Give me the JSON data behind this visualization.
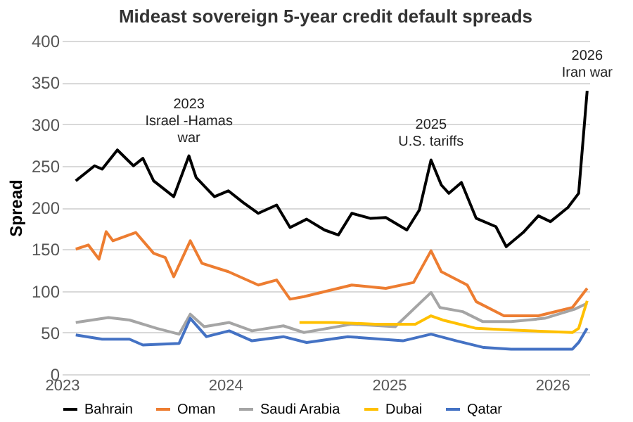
{
  "chart_data": {
    "type": "line",
    "title": "Mideast sovereign 5-year credit default spreads",
    "ylabel": "Spread",
    "xlim": [
      "2023-01-01",
      "2026-03-25"
    ],
    "xticks": [
      {
        "value": "2023-01-01",
        "label": "2023"
      },
      {
        "value": "2024-01-01",
        "label": "2024"
      },
      {
        "value": "2025-01-01",
        "label": "2025"
      },
      {
        "value": "2026-01-01",
        "label": "2026"
      }
    ],
    "ylim": [
      0,
      400
    ],
    "yticks": [
      0,
      50,
      100,
      150,
      200,
      250,
      300,
      350,
      400
    ],
    "grid": "y",
    "legend": "bottom",
    "marker": "none",
    "line_style": "solid",
    "annotations": [
      {
        "text": "2023\nIsrael -Hamas\nwar",
        "x": "2023-10-12",
        "y": 262
      },
      {
        "text": "2025\nU.S. tariffs",
        "x": "2025-04-05",
        "y": 257
      },
      {
        "text": "2026\nIran war",
        "x": "2026-03-20",
        "y": 340
      }
    ],
    "series": [
      {
        "name": "Bahrain",
        "color": "#000000",
        "x": [
          "2023-02-01",
          "2023-03-15",
          "2023-04-01",
          "2023-05-05",
          "2023-06-10",
          "2023-07-01",
          "2023-07-25",
          "2023-09-08",
          "2023-10-12",
          "2023-10-28",
          "2023-12-08",
          "2024-01-08",
          "2024-02-10",
          "2024-03-15",
          "2024-04-25",
          "2024-05-25",
          "2024-07-01",
          "2024-08-10",
          "2024-09-10",
          "2024-10-10",
          "2024-11-20",
          "2024-12-25",
          "2025-02-10",
          "2025-03-10",
          "2025-04-05",
          "2025-04-28",
          "2025-05-15",
          "2025-06-12",
          "2025-07-15",
          "2025-08-28",
          "2025-09-20",
          "2025-10-28",
          "2025-12-01",
          "2025-12-28",
          "2026-02-05",
          "2026-03-01",
          "2026-03-20"
        ],
        "values": [
          232,
          250,
          246,
          269,
          250,
          259,
          232,
          213,
          262,
          236,
          213,
          220,
          206,
          193,
          203,
          176,
          186,
          173,
          167,
          193,
          187,
          188,
          173,
          197,
          257,
          227,
          217,
          230,
          187,
          177,
          153,
          170,
          190,
          183,
          200,
          217,
          340
        ]
      },
      {
        "name": "Oman",
        "color": "#ed7d31",
        "x": [
          "2023-02-01",
          "2023-03-01",
          "2023-03-25",
          "2023-04-10",
          "2023-04-25",
          "2023-06-15",
          "2023-07-25",
          "2023-08-20",
          "2023-09-08",
          "2023-10-15",
          "2023-11-10",
          "2024-01-08",
          "2024-03-15",
          "2024-04-25",
          "2024-05-25",
          "2024-06-25",
          "2024-10-10",
          "2024-12-25",
          "2025-02-25",
          "2025-04-05",
          "2025-04-28",
          "2025-06-25",
          "2025-07-15",
          "2025-09-15",
          "2025-12-01",
          "2026-02-15",
          "2026-03-20"
        ],
        "values": [
          150,
          155,
          138,
          171,
          160,
          170,
          145,
          140,
          117,
          160,
          133,
          123,
          107,
          113,
          90,
          93,
          107,
          103,
          110,
          148,
          123,
          107,
          87,
          70,
          70,
          80,
          103
        ]
      },
      {
        "name": "Saudi Arabia",
        "color": "#a5a5a5",
        "x": [
          "2023-02-01",
          "2023-04-15",
          "2023-06-01",
          "2023-08-01",
          "2023-09-20",
          "2023-10-15",
          "2023-11-15",
          "2024-01-10",
          "2024-03-01",
          "2024-05-10",
          "2024-06-25",
          "2024-10-10",
          "2025-01-15",
          "2025-04-05",
          "2025-04-25",
          "2025-06-15",
          "2025-07-30",
          "2025-10-01",
          "2025-12-15",
          "2026-02-20",
          "2026-03-20"
        ],
        "values": [
          62,
          68,
          65,
          55,
          48,
          72,
          57,
          62,
          52,
          58,
          50,
          60,
          57,
          98,
          80,
          75,
          63,
          63,
          67,
          78,
          85
        ]
      },
      {
        "name": "Dubai",
        "color": "#ffc000",
        "x": [
          "2024-06-15",
          "2024-09-01",
          "2024-12-01",
          "2025-03-01",
          "2025-04-05",
          "2025-05-01",
          "2025-07-15",
          "2025-10-01",
          "2026-02-15",
          "2026-03-01",
          "2026-03-20"
        ],
        "values": [
          62,
          62,
          60,
          60,
          70,
          65,
          55,
          53,
          50,
          55,
          88
        ]
      },
      {
        "name": "Qatar",
        "color": "#4472c4",
        "x": [
          "2023-02-01",
          "2023-04-01",
          "2023-06-01",
          "2023-07-01",
          "2023-09-20",
          "2023-10-15",
          "2023-11-20",
          "2024-01-10",
          "2024-03-01",
          "2024-05-10",
          "2024-07-01",
          "2024-10-01",
          "2025-02-01",
          "2025-04-05",
          "2025-06-01",
          "2025-08-01",
          "2025-10-01",
          "2026-02-15",
          "2026-03-01",
          "2026-03-20"
        ],
        "values": [
          47,
          42,
          42,
          35,
          37,
          67,
          45,
          52,
          40,
          45,
          38,
          45,
          40,
          48,
          40,
          32,
          30,
          30,
          38,
          55
        ]
      }
    ]
  }
}
